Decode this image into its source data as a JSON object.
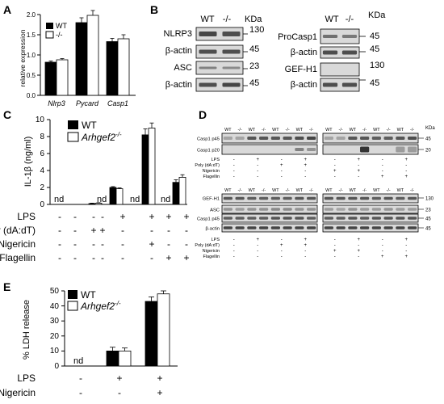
{
  "panels": {
    "A": "A",
    "B": "B",
    "C": "C",
    "D": "D",
    "E": "E"
  },
  "legend": {
    "wt": "WT",
    "ko_short": "-/-",
    "ko_gene": "Arhgef2",
    "ko_sup": "-/-"
  },
  "panel_a": {
    "ylabel": "relative expression",
    "yticks": [
      "0.0",
      "0.5",
      "1.0",
      "1.5",
      "2.0"
    ]
  },
  "panel_b": {
    "header_wt": "WT",
    "header_ko": "-/-",
    "kda": "KDa",
    "left_rows": [
      {
        "label": "NLRP3",
        "mw": "130"
      },
      {
        "label": "β-actin",
        "mw": "45"
      },
      {
        "label": "ASC",
        "mw": "23"
      },
      {
        "label": "β-actin",
        "mw": "45"
      }
    ],
    "right_rows": [
      {
        "label": "ProCasp1",
        "mw": "45"
      },
      {
        "label": "β-actin",
        "mw": "45"
      },
      {
        "label": "GEF-H1",
        "mw": "130"
      },
      {
        "label": "β-actin",
        "mw": "45"
      }
    ]
  },
  "panel_c": {
    "ylabel": "IL-1β (ng/ml)",
    "yticks": [
      "0",
      "2",
      "4",
      "6",
      "8",
      "10"
    ],
    "nd": "nd",
    "treatments": [
      {
        "name": "LPS",
        "signs": [
          "-",
          "-",
          "-",
          "-",
          "+",
          "+",
          "+",
          "+"
        ]
      },
      {
        "name": "Poly (dA:dT)",
        "signs": [
          "-",
          "-",
          "+",
          "+",
          "-",
          "-",
          "-",
          "-"
        ]
      },
      {
        "name": "Nigericin",
        "signs": [
          "-",
          "-",
          "-",
          "-",
          "-",
          "+",
          "-",
          "-"
        ]
      },
      {
        "name": "Flagellin",
        "signs": [
          "-",
          "-",
          "-",
          "-",
          "-",
          "-",
          "+",
          "+"
        ]
      }
    ]
  },
  "panel_d": {
    "lane_labels": [
      "WT",
      "-/-",
      "WT",
      "-/-",
      "WT",
      "-/-",
      "WT",
      "-/-"
    ],
    "kda": "KDa",
    "top_rows": [
      {
        "label": "Casp1 p45",
        "mw": "45"
      },
      {
        "label": "Casp1 p20",
        "mw": "20"
      }
    ],
    "bottom_rows": [
      {
        "label": "GEF-H1",
        "mw": "130"
      },
      {
        "label": "ASC",
        "mw": "23"
      },
      {
        "label": "Casp1 p45",
        "mw": "45"
      },
      {
        "label": "β-actin",
        "mw": "45"
      }
    ],
    "top_treatments": [
      {
        "name": "LPS",
        "left": [
          "-",
          "+",
          "-",
          "+"
        ],
        "right": [
          "-",
          "+",
          "-",
          "+"
        ]
      },
      {
        "name": "Poly (dA:dT)",
        "left": [
          "-",
          "-",
          "+",
          "+"
        ],
        "right": [
          "-",
          "-",
          "-",
          "-"
        ]
      },
      {
        "name": "Nigericin",
        "left": [
          "-",
          "-",
          "-",
          "-"
        ],
        "right": [
          "+",
          "+",
          "-",
          "-"
        ]
      },
      {
        "name": "Flagellin",
        "left": [
          "-",
          "-",
          "-",
          "-"
        ],
        "right": [
          "-",
          "-",
          "+",
          "+"
        ]
      }
    ],
    "bottom_treatments": [
      {
        "name": "LPS",
        "left": [
          "-",
          "+",
          "-",
          "+"
        ],
        "right": [
          "-",
          "+",
          "-",
          "+"
        ]
      },
      {
        "name": "Poly (dA:dT)",
        "left": [
          "-",
          "-",
          "+",
          "+"
        ],
        "right": [
          "-",
          "-",
          "-",
          "-"
        ]
      },
      {
        "name": "Nigericin",
        "left": [
          "-",
          "-",
          "-",
          "-"
        ],
        "right": [
          "+",
          "+",
          "-",
          "-"
        ]
      },
      {
        "name": "Flagellin",
        "left": [
          "-",
          "-",
          "-",
          "-"
        ],
        "right": [
          "-",
          "-",
          "+",
          "+"
        ]
      }
    ]
  },
  "panel_e": {
    "ylabel": "% LDH release",
    "yticks": [
      "0",
      "10",
      "20",
      "30",
      "40",
      "50"
    ],
    "nd": "nd",
    "treatments": [
      {
        "name": "LPS",
        "signs": [
          "-",
          "+",
          "+"
        ]
      },
      {
        "name": "Nigericin",
        "signs": [
          "-",
          "-",
          "+"
        ]
      }
    ]
  },
  "colors": {
    "wt": "#000000",
    "ko": "#ffffff",
    "blot_bg": "#d9d9d9",
    "band": "#2a2a2a"
  },
  "chart_data": [
    {
      "type": "bar",
      "panel": "A",
      "categories": [
        "Nlrp3",
        "Pycard",
        "Casp1"
      ],
      "ylabel": "relative expression",
      "ylim": [
        0,
        2.0
      ],
      "series": [
        {
          "name": "WT",
          "values": [
            0.82,
            1.8,
            1.33
          ],
          "errors": [
            0.03,
            0.12,
            0.08
          ]
        },
        {
          "name": "-/-",
          "values": [
            0.88,
            1.98,
            1.4
          ],
          "errors": [
            0.03,
            0.12,
            0.1
          ]
        }
      ]
    },
    {
      "type": "bar",
      "panel": "C",
      "categories": [
        "1",
        "2",
        "3",
        "4",
        "5",
        "6",
        "7",
        "8"
      ],
      "ylabel": "IL-1β (ng/ml)",
      "ylim": [
        0,
        10
      ],
      "series": [
        {
          "name": "WT",
          "values": [
            null,
            0.1,
            null,
            2.0,
            null,
            8.2,
            null,
            2.6
          ],
          "errors": [
            0,
            0.05,
            0,
            0.1,
            0,
            0.7,
            0,
            0.3
          ]
        },
        {
          "name": "Arhgef2-/-",
          "values": [
            null,
            0.15,
            null,
            1.85,
            null,
            9.0,
            null,
            3.2
          ],
          "errors": [
            0,
            0.05,
            0,
            0.1,
            0,
            0.6,
            0,
            0.3
          ]
        }
      ]
    },
    {
      "type": "bar",
      "panel": "E",
      "categories": [
        "1",
        "2",
        "3"
      ],
      "ylabel": "% LDH release",
      "ylim": [
        0,
        50
      ],
      "series": [
        {
          "name": "WT",
          "values": [
            null,
            10,
            43
          ],
          "errors": [
            0,
            2.5,
            3
          ]
        },
        {
          "name": "Arhgef2-/-",
          "values": [
            null,
            10,
            48
          ],
          "errors": [
            0,
            2,
            2
          ]
        }
      ]
    }
  ]
}
